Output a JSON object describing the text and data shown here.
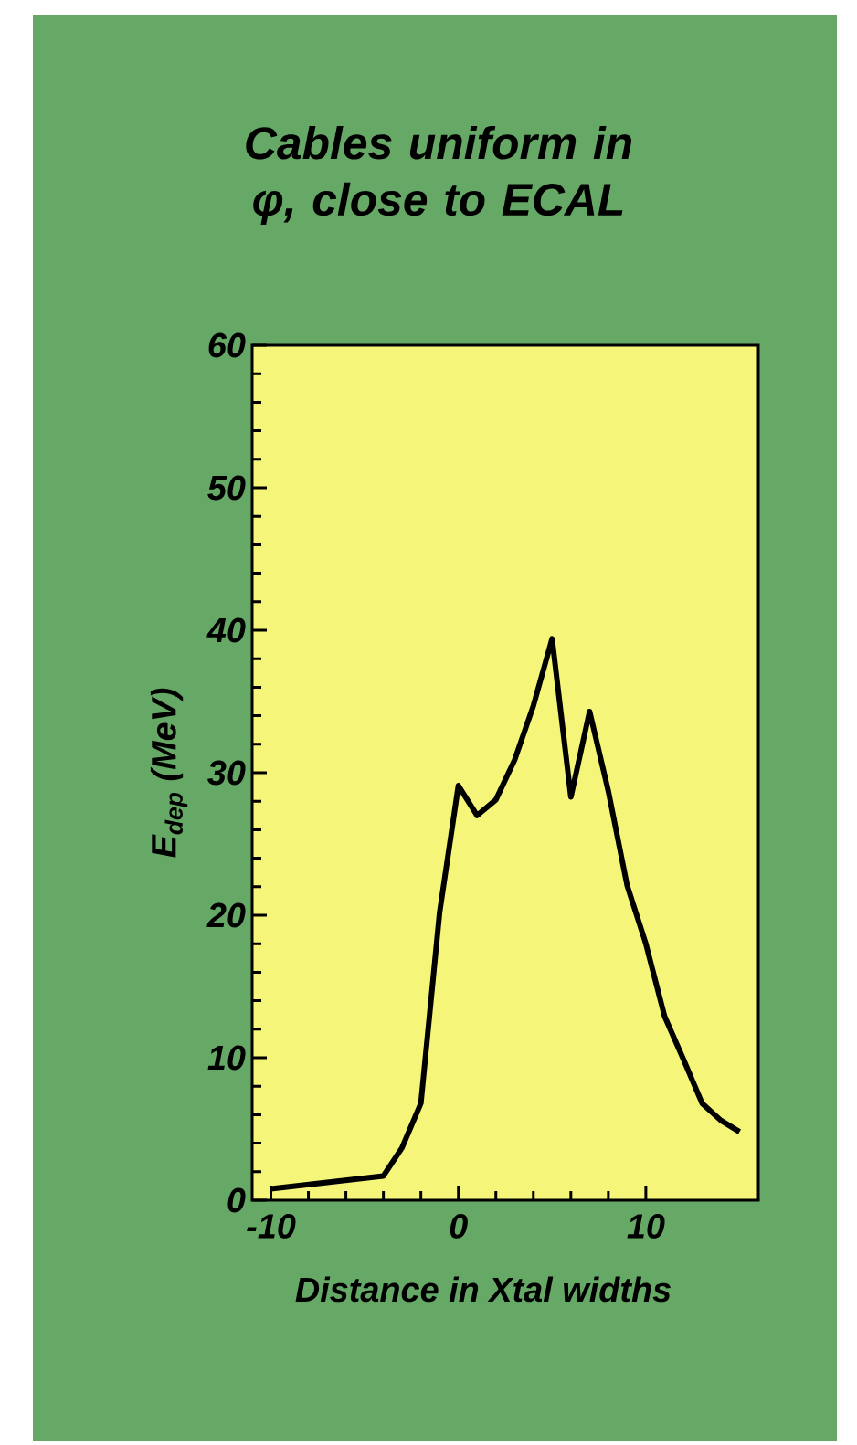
{
  "chart_data": {
    "type": "line",
    "title": "Cables uniform in φ, close to ECAL",
    "xlabel": "Distance in Xtal widths",
    "ylabel": "E$_{dep}$ (MeV)",
    "x": [
      -10,
      -4,
      -3,
      -2,
      -1,
      0,
      1,
      2,
      3,
      4,
      5,
      6,
      7,
      8,
      9,
      10,
      11,
      12,
      13,
      14,
      15
    ],
    "series": [
      {
        "color": "#000000",
        "values": [
          0.8,
          1.7,
          3.7,
          6.8,
          20.2,
          29.1,
          27,
          28.1,
          30.9,
          34.7,
          39.4,
          28.3,
          34.3,
          28.7,
          22.1,
          18,
          12.9,
          9.9,
          6.8,
          5.6,
          4.8
        ]
      }
    ],
    "xlim": [
      -11,
      16
    ],
    "ylim": [
      0,
      60
    ],
    "xticks": [
      -10,
      0,
      10
    ],
    "yticks": [
      0,
      10,
      20,
      30,
      40,
      50,
      60
    ],
    "grid": false,
    "marker": "none",
    "line_style": "solid"
  }
}
